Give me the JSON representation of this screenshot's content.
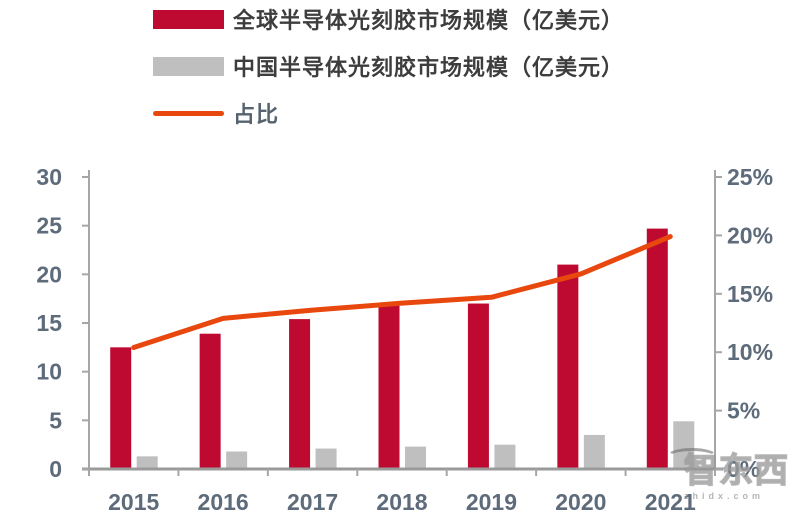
{
  "chart_data": {
    "type": "bar",
    "subtype": "bar+line-combo",
    "categories": [
      "2015",
      "2016",
      "2017",
      "2018",
      "2019",
      "2020",
      "2021"
    ],
    "series": [
      {
        "name": "全球半导体光刻胶市场规模（亿美元）",
        "type": "bar",
        "axis": "left",
        "color": "#be0a31",
        "values": [
          12.5,
          13.9,
          15.4,
          17.0,
          17.0,
          21.0,
          24.7
        ]
      },
      {
        "name": "中国半导体光刻胶市场规模（亿美元）",
        "type": "bar",
        "axis": "left",
        "color": "#bfbfbf",
        "values": [
          1.3,
          1.8,
          2.1,
          2.3,
          2.5,
          3.5,
          4.9
        ]
      },
      {
        "name": "占比",
        "type": "line",
        "axis": "right",
        "color": "#e8480d",
        "values": [
          10.4,
          12.9,
          13.6,
          14.2,
          14.7,
          16.7,
          19.9
        ]
      }
    ],
    "left_axis": {
      "min": 0,
      "max": 30,
      "step": 5,
      "ticks": [
        "0",
        "5",
        "10",
        "15",
        "20",
        "25",
        "30"
      ]
    },
    "right_axis": {
      "min": 0,
      "max": 25,
      "step": 5,
      "unit": "%",
      "ticks": [
        "0%",
        "5%",
        "10%",
        "15%",
        "20%",
        "25%"
      ]
    },
    "title": "",
    "xlabel": "",
    "ylabel": "",
    "grid": false,
    "legend_position": "top-left"
  },
  "colors": {
    "global_bar": "#be0a31",
    "china_bar": "#bfbfbf",
    "ratio_line": "#e8480d",
    "axis_line": "#a6a6a6",
    "axis_label": "#5d6b7a",
    "legend_text": "#3d3d3d",
    "background": "#ffffff"
  },
  "watermark": {
    "text": "智东西",
    "sub": "zhidx.com"
  }
}
